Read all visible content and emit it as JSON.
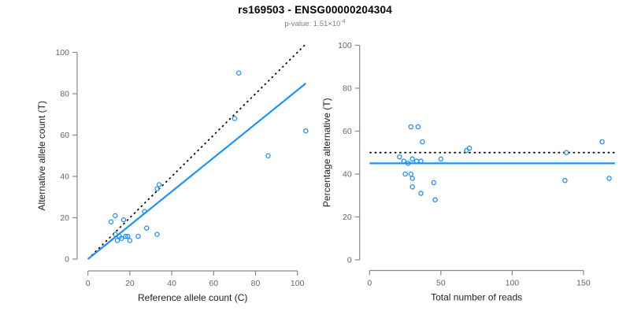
{
  "figure": {
    "title": "rs169503 - ENSG00000204304",
    "subtitle_prefix": "p-value: 1.51×10",
    "subtitle_exponent": "-4"
  },
  "colors": {
    "point_and_regression": "#1E90FF",
    "expected_line": "#000000",
    "axis": "#888888",
    "tick_label": "#666666",
    "axis_title": "#222222"
  },
  "chart_data": [
    {
      "type": "scatter",
      "panel": "left",
      "xlabel": "Reference allele count (C)",
      "ylabel": "Alternative allele count (T)",
      "xlim": [
        0,
        105
      ],
      "ylim": [
        0,
        105
      ],
      "xticks": [
        0,
        20,
        40,
        60,
        80,
        100
      ],
      "yticks": [
        0,
        20,
        40,
        60,
        80,
        100
      ],
      "grid": false,
      "marker": "open-circle",
      "points": [
        [
          11,
          18
        ],
        [
          13,
          21
        ],
        [
          13,
          12
        ],
        [
          14,
          9
        ],
        [
          15,
          11
        ],
        [
          16,
          10
        ],
        [
          17,
          19
        ],
        [
          18,
          11
        ],
        [
          19,
          11
        ],
        [
          20,
          9
        ],
        [
          24,
          11
        ],
        [
          27,
          23
        ],
        [
          28,
          15
        ],
        [
          33,
          12
        ],
        [
          33,
          34
        ],
        [
          34,
          36
        ],
        [
          70,
          68
        ],
        [
          72,
          90
        ],
        [
          86,
          50
        ],
        [
          104,
          62
        ]
      ],
      "lines": [
        {
          "name": "identity-line",
          "style": "dotted",
          "color": "#000000",
          "x1": 0,
          "y1": 0,
          "x2": 104,
          "y2": 104
        },
        {
          "name": "regression-line",
          "style": "solid",
          "color": "#1E90FF",
          "x1": 0,
          "y1": 0,
          "x2": 104,
          "y2": 85
        }
      ]
    },
    {
      "type": "scatter",
      "panel": "right",
      "xlabel": "Total number of reads",
      "ylabel": "Percentage alternative (T)",
      "xlim": [
        0,
        172
      ],
      "ylim": [
        0,
        100
      ],
      "xticks": [
        0,
        50,
        100,
        150
      ],
      "yticks": [
        0,
        20,
        40,
        60,
        80,
        100
      ],
      "grid": false,
      "marker": "open-circle",
      "points": [
        [
          21,
          48
        ],
        [
          24,
          46
        ],
        [
          25,
          40
        ],
        [
          27,
          45
        ],
        [
          29,
          62
        ],
        [
          29,
          40
        ],
        [
          30,
          47
        ],
        [
          30,
          38
        ],
        [
          30,
          34
        ],
        [
          33,
          46
        ],
        [
          34,
          62
        ],
        [
          36,
          46
        ],
        [
          36,
          31
        ],
        [
          37,
          55
        ],
        [
          45,
          36
        ],
        [
          46,
          28
        ],
        [
          50,
          47
        ],
        [
          68,
          51
        ],
        [
          70,
          52
        ],
        [
          137,
          37
        ],
        [
          138,
          50
        ],
        [
          163,
          55
        ],
        [
          168,
          38
        ]
      ],
      "lines": [
        {
          "name": "expected-50-percent-line",
          "style": "dotted",
          "color": "#000000",
          "x1": 0,
          "y1": 50,
          "x2": 172,
          "y2": 50
        },
        {
          "name": "mean-percentage-line",
          "style": "solid",
          "color": "#1E90FF",
          "x1": 0,
          "y1": 45,
          "x2": 172,
          "y2": 45
        }
      ]
    }
  ]
}
